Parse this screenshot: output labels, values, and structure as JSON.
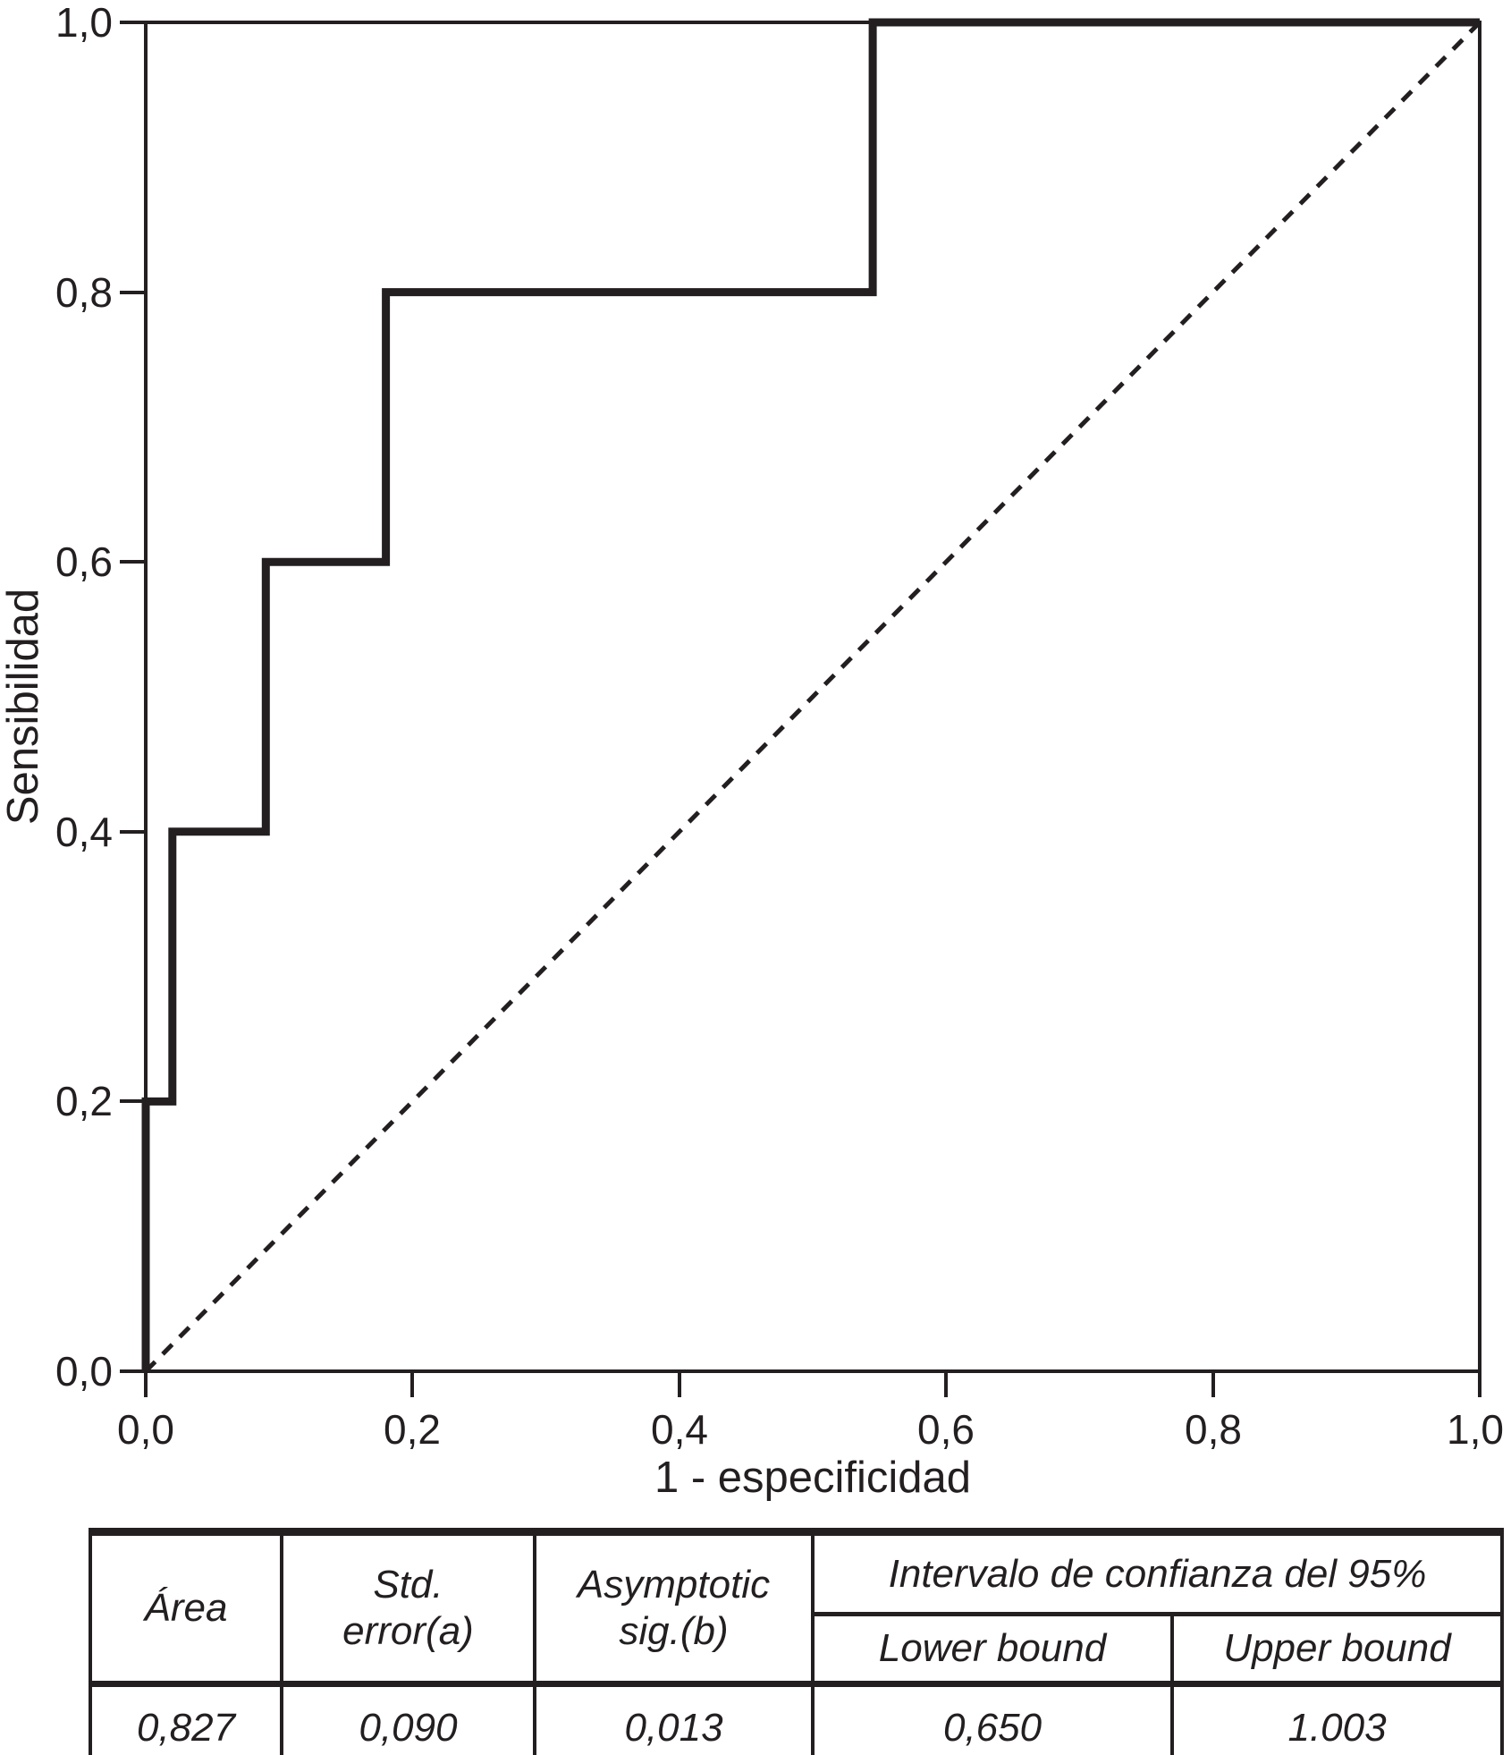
{
  "chart_data": {
    "type": "line",
    "subtype": "roc-step-curve",
    "title": "",
    "xlabel": "1 - especificidad",
    "ylabel": "Sensibilidad",
    "xlim": [
      0.0,
      1.0
    ],
    "ylim": [
      0.0,
      1.0
    ],
    "x_tick_labels": [
      "0,0",
      "0,2",
      "0,4",
      "0,6",
      "0,8",
      "1,0"
    ],
    "y_tick_labels": [
      "0,0",
      "0,2",
      "0,4",
      "0,6",
      "0,8",
      "1,0"
    ],
    "grid": false,
    "legend": "none",
    "frame": "full-box",
    "series": [
      {
        "name": "ROC curve",
        "line_style": "solid",
        "points": [
          [
            0,
            0
          ],
          [
            0,
            0.2
          ],
          [
            0.02,
            0.2
          ],
          [
            0.02,
            0.4
          ],
          [
            0.09,
            0.4
          ],
          [
            0.09,
            0.6
          ],
          [
            0.18,
            0.6
          ],
          [
            0.18,
            0.8
          ],
          [
            0.545,
            0.8
          ],
          [
            0.545,
            1.0
          ],
          [
            1.0,
            1.0
          ]
        ]
      },
      {
        "name": "reference diagonal",
        "line_style": "dashed",
        "points": [
          [
            0,
            0
          ],
          [
            1,
            1
          ]
        ]
      }
    ]
  },
  "table": {
    "header": {
      "area": "Área",
      "std_error_line1": "Std.",
      "std_error_line2": "error(a)",
      "asymptotic_sig_line1": "Asymptotic",
      "asymptotic_sig_line2": "sig.(b)",
      "confidence_interval": "Intervalo de confianza del 95%",
      "lower_bound": "Lower bound",
      "upper_bound": "Upper bound"
    },
    "values": {
      "area": "0,827",
      "std_error": "0,090",
      "asymptotic_sig": "0,013",
      "lower_bound": "0,650",
      "upper_bound": "1.003"
    }
  },
  "colors": {
    "ink": "#231f20",
    "background": "#ffffff"
  }
}
